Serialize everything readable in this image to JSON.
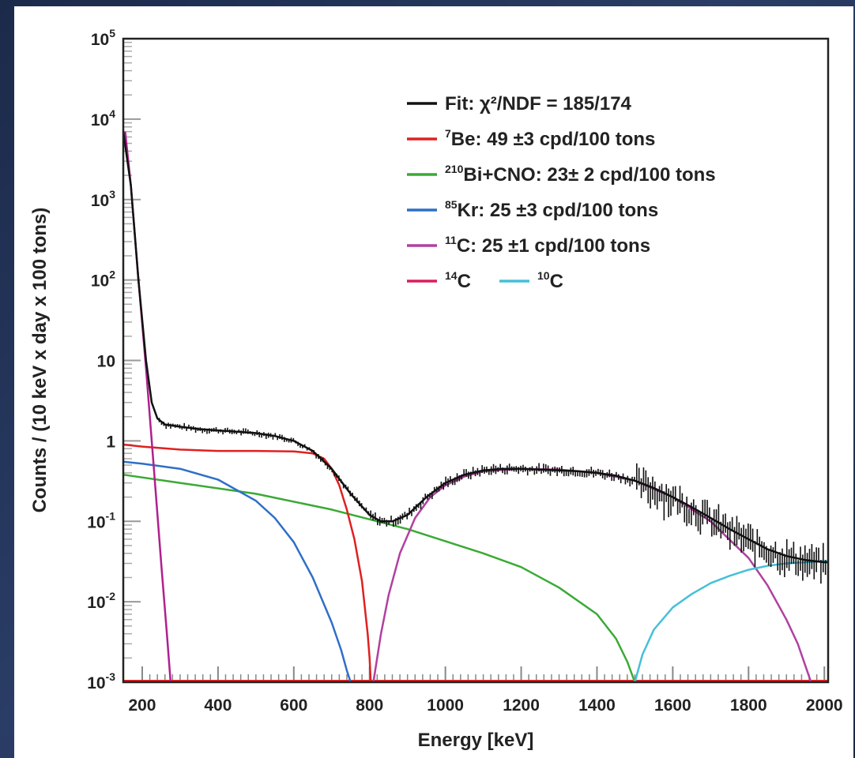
{
  "chart_data": {
    "type": "line",
    "xlabel": "Energy [keV]",
    "ylabel": "Counts / (10 keV x day x 100 tons)",
    "xlim": [
      150,
      2010
    ],
    "ylim": [
      0.001,
      100000
    ],
    "yscale": "log",
    "x_ticks": [
      "200",
      "400",
      "600",
      "800",
      "1000",
      "1200",
      "1400",
      "1600",
      "1800",
      "2000"
    ],
    "y_ticks": [
      {
        "base": "10",
        "exp": "5",
        "value": 100000
      },
      {
        "base": "10",
        "exp": "4",
        "value": 10000
      },
      {
        "base": "10",
        "exp": "3",
        "value": 1000
      },
      {
        "base": "10",
        "exp": "2",
        "value": 100
      },
      {
        "base": "10",
        "exp": "",
        "value": 10
      },
      {
        "base": "1",
        "exp": "",
        "value": 1
      },
      {
        "base": "10",
        "exp": "-1",
        "value": 0.1
      },
      {
        "base": "10",
        "exp": "-2",
        "value": 0.01
      },
      {
        "base": "10",
        "exp": "-3",
        "value": 0.001
      }
    ],
    "legend_position": "top-right",
    "legend": [
      {
        "key": "fit",
        "color": "#111111",
        "sup": "",
        "text": "Fit:    χ²/NDF = 185/174"
      },
      {
        "key": "be7",
        "color": "#e02020",
        "sup": "7",
        "text": "Be: 49 ±3 cpd/100 tons"
      },
      {
        "key": "bi210",
        "color": "#3aaa35",
        "sup": "210",
        "text": "Bi+CNO: 23± 2 cpd/100 tons"
      },
      {
        "key": "kr85",
        "color": "#2f6fc7",
        "sup": "85",
        "text": "Kr: 25 ±3 cpd/100 tons"
      },
      {
        "key": "c11",
        "color": "#b040a0",
        "sup": "11",
        "text": "C: 25 ±1 cpd/100 tons"
      },
      {
        "key": "c14",
        "color": "#d81e5b",
        "sup": "14",
        "text": "C"
      },
      {
        "key": "c10",
        "color": "#45c0d8",
        "sup": "10",
        "text": "C"
      }
    ],
    "series": [
      {
        "name": "Fit",
        "color": "#111111",
        "x": [
          150,
          170,
          190,
          210,
          225,
          240,
          260,
          300,
          350,
          400,
          450,
          500,
          550,
          600,
          650,
          700,
          750,
          800,
          830,
          860,
          900,
          950,
          1000,
          1050,
          1100,
          1150,
          1200,
          1250,
          1300,
          1350,
          1400,
          1450,
          1500,
          1550,
          1600,
          1650,
          1700,
          1750,
          1800,
          1850,
          1900,
          1950,
          2000,
          2010
        ],
        "y": [
          7000,
          1500,
          100,
          10,
          3,
          1.9,
          1.6,
          1.5,
          1.4,
          1.35,
          1.3,
          1.25,
          1.15,
          1.0,
          0.75,
          0.45,
          0.22,
          0.12,
          0.1,
          0.1,
          0.12,
          0.2,
          0.3,
          0.38,
          0.43,
          0.45,
          0.45,
          0.44,
          0.43,
          0.42,
          0.4,
          0.37,
          0.32,
          0.26,
          0.2,
          0.15,
          0.11,
          0.08,
          0.06,
          0.045,
          0.037,
          0.033,
          0.031,
          0.031
        ]
      },
      {
        "name": "Be",
        "color": "#e02020",
        "x": [
          150,
          200,
          300,
          400,
          500,
          600,
          650,
          680,
          700,
          720,
          740,
          760,
          780,
          795,
          800,
          803
        ],
        "y": [
          0.9,
          0.85,
          0.78,
          0.75,
          0.75,
          0.74,
          0.7,
          0.6,
          0.45,
          0.28,
          0.14,
          0.06,
          0.018,
          0.004,
          0.002,
          0.001
        ]
      },
      {
        "name": "Bi+CNO",
        "color": "#3aaa35",
        "x": [
          150,
          300,
          500,
          700,
          900,
          1100,
          1200,
          1300,
          1400,
          1450,
          1480,
          1500
        ],
        "y": [
          0.38,
          0.3,
          0.22,
          0.14,
          0.08,
          0.04,
          0.027,
          0.015,
          0.007,
          0.0035,
          0.0018,
          0.001
        ]
      },
      {
        "name": "Kr",
        "color": "#2f6fc7",
        "x": [
          150,
          200,
          300,
          400,
          500,
          550,
          600,
          650,
          700,
          725,
          740,
          750
        ],
        "y": [
          0.55,
          0.52,
          0.45,
          0.33,
          0.18,
          0.11,
          0.055,
          0.02,
          0.0055,
          0.0025,
          0.0014,
          0.001
        ]
      },
      {
        "name": "C11",
        "color": "#b040a0",
        "x": [
          810,
          830,
          850,
          880,
          920,
          960,
          1000,
          1050,
          1100,
          1200,
          1300,
          1400,
          1500,
          1600,
          1700,
          1800,
          1850,
          1900,
          1930,
          1950,
          1965
        ],
        "y": [
          0.001,
          0.004,
          0.012,
          0.04,
          0.11,
          0.2,
          0.28,
          0.36,
          0.42,
          0.45,
          0.44,
          0.4,
          0.32,
          0.2,
          0.1,
          0.035,
          0.016,
          0.006,
          0.003,
          0.0016,
          0.001
        ]
      },
      {
        "name": "C14",
        "color": "#b0208e",
        "x": [
          155,
          170,
          190,
          210,
          230,
          250,
          265,
          275
        ],
        "y": [
          7000,
          1500,
          100,
          8,
          0.5,
          0.03,
          0.004,
          0.001
        ]
      },
      {
        "name": "C10",
        "color": "#45c0d8",
        "x": [
          1500,
          1520,
          1550,
          1600,
          1650,
          1700,
          1750,
          1800,
          1850,
          1900,
          1950,
          2000,
          2010
        ],
        "y": [
          0.001,
          0.0022,
          0.0045,
          0.0085,
          0.0125,
          0.017,
          0.021,
          0.025,
          0.028,
          0.03,
          0.031,
          0.032,
          0.032
        ]
      }
    ]
  }
}
